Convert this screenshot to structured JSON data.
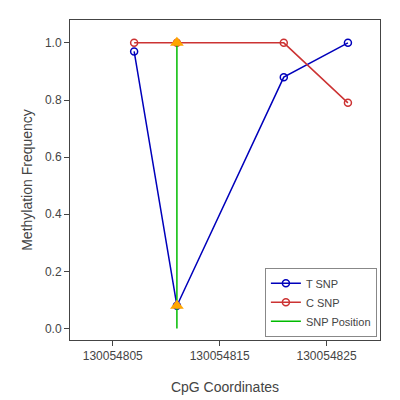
{
  "chart_data": {
    "type": "line",
    "xlabel": "CpG Coordinates",
    "ylabel": "Methylation Frequency",
    "series": [
      {
        "name": "T SNP",
        "color": "#0000BB",
        "marker": "circle-open",
        "line_style": "solid",
        "x": [
          130054807,
          130054811,
          130054821,
          130054827
        ],
        "values": [
          0.97,
          0.08,
          0.88,
          1.0
        ]
      },
      {
        "name": "C SNP",
        "color": "#CC3333",
        "marker": "circle-open",
        "line_style": "solid",
        "x": [
          130054807,
          130054811,
          130054821,
          130054827
        ],
        "values": [
          1.0,
          1.0,
          1.0,
          0.79
        ]
      },
      {
        "name": "SNP Position",
        "color": "#00BB00",
        "line_style": "solid",
        "x": [
          130054811,
          130054811
        ],
        "values": [
          0.0,
          1.0
        ]
      },
      {
        "type": "scatter",
        "color": "#FFA500",
        "marker": "triangle-up",
        "x": [
          130054811,
          130054811
        ],
        "values": [
          0.08,
          1.0
        ]
      }
    ],
    "xlim": [
      130054801,
      130054830
    ],
    "xticks": [
      130054805,
      130054815,
      130054825
    ],
    "ylim": [
      -0.04,
      1.08
    ],
    "yticks": [
      {
        "value": 0.0,
        "label": "0.0"
      },
      0.2,
      0.4,
      0.6,
      0.8,
      {
        "value": 1.0,
        "label": "1.0"
      }
    ],
    "grid": false,
    "legend": "lower right"
  }
}
